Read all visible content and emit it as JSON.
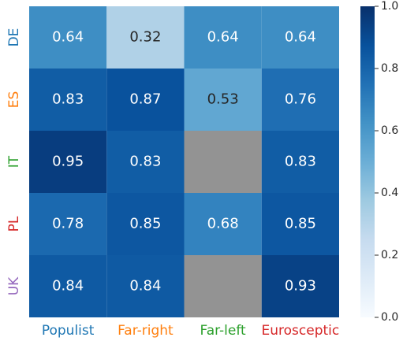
{
  "chart_data": {
    "type": "heatmap",
    "x_categories": [
      "Populist",
      "Far-right",
      "Far-left",
      "Eurosceptic"
    ],
    "y_categories": [
      "DE",
      "ES",
      "IT",
      "PL",
      "UK"
    ],
    "x_label_colors": [
      "#1f77b4",
      "#ff7f0e",
      "#2ca02c",
      "#d62728"
    ],
    "y_label_colors": [
      "#1f77b4",
      "#ff7f0e",
      "#2ca02c",
      "#d62728",
      "#9467bd"
    ],
    "values": [
      [
        0.64,
        0.32,
        0.64,
        0.64
      ],
      [
        0.83,
        0.87,
        0.53,
        0.76
      ],
      [
        0.95,
        0.83,
        null,
        0.83
      ],
      [
        0.78,
        0.85,
        0.68,
        0.85
      ],
      [
        0.84,
        0.84,
        null,
        0.93
      ]
    ],
    "colorscale": [
      "#f7fbff",
      "#deebf7",
      "#c6dbef",
      "#9ecae1",
      "#6baed6",
      "#4292c6",
      "#2171b5",
      "#08519c",
      "#08306b"
    ],
    "missing_color": "#939393",
    "clim": [
      0,
      1
    ],
    "cticks": [
      {
        "value": 0,
        "label": "0.0"
      },
      0.2,
      0.4,
      0.6,
      0.8,
      {
        "value": 1,
        "label": "1.0"
      }
    ]
  }
}
